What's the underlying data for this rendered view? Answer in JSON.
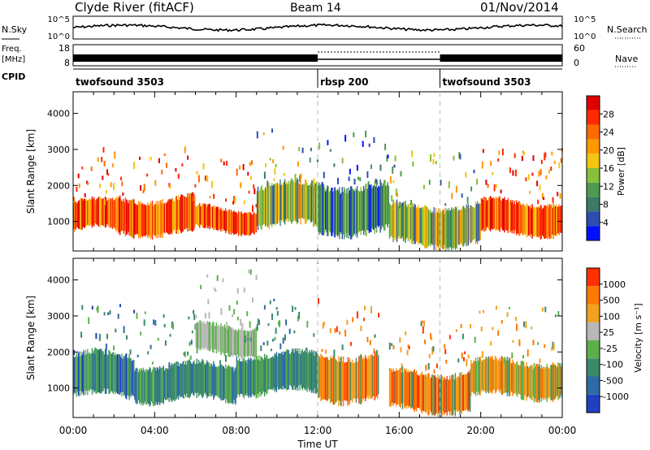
{
  "header": {
    "radar": "Clyde River (fitACF)",
    "beam": "Beam 14",
    "date": "01/Nov/2014"
  },
  "noise_panel": {
    "left_label": "N.Sky",
    "right_label": "N.Search",
    "left_ticks": [
      "10^5",
      "10^0"
    ],
    "right_ticks": [
      "10^5",
      "10^0"
    ]
  },
  "freq_panel": {
    "left_label_1": "Freq.",
    "left_label_2": "[MHz]",
    "left_ticks": [
      "18",
      "8"
    ],
    "right_ticks": [
      "60",
      "0"
    ],
    "right_label": "Nave"
  },
  "cpid": {
    "label": "CPID",
    "segments": [
      {
        "name": "twofsound 3503",
        "start_hour": 0,
        "end_hour": 12
      },
      {
        "name": "rbsp 200",
        "start_hour": 12,
        "end_hour": 18
      },
      {
        "name": "twofsound 3503",
        "start_hour": 18,
        "end_hour": 24
      }
    ]
  },
  "colorbars": {
    "power": {
      "label": "Power [dB]",
      "ticks": [
        "28",
        "24",
        "20",
        "16",
        "12",
        "8",
        "4"
      ],
      "colors": [
        "#0010ff",
        "#2d4db0",
        "#3b7a68",
        "#4e9a4f",
        "#87c03a",
        "#f2c511",
        "#ff9800",
        "#ff6a00",
        "#ff2a00",
        "#e00000"
      ]
    },
    "velocity": {
      "label": "Velocity [m s⁻¹]",
      "ticks": [
        "1000",
        "500",
        "100",
        "25",
        "-25",
        "-100",
        "-500",
        "-1000"
      ],
      "colors": [
        "#2040c0",
        "#2e6aa6",
        "#3a8a6a",
        "#5cb04a",
        "#b8b8b8",
        "#f2a020",
        "#ff7a00",
        "#ff3000"
      ]
    }
  },
  "chart_data": [
    {
      "type": "heatmap",
      "title": "Power",
      "ylabel": "Slant Range [km]",
      "xlabel": "",
      "yticks": [
        "1000",
        "2000",
        "3000",
        "4000"
      ],
      "ylim": [
        180,
        4600
      ],
      "xlim_hours": [
        0,
        24
      ],
      "blobs": [
        {
          "t0": 0.0,
          "t1": 2.0,
          "r0": 700,
          "r1": 1600,
          "level": "high"
        },
        {
          "t0": 2.0,
          "t1": 6.0,
          "r0": 600,
          "r1": 1700,
          "level": "high"
        },
        {
          "t0": 6.0,
          "t1": 9.0,
          "r0": 700,
          "r1": 1400,
          "level": "high"
        },
        {
          "t0": 9.0,
          "t1": 12.0,
          "r0": 800,
          "r1": 2100,
          "level": "mid"
        },
        {
          "t0": 12.0,
          "t1": 15.5,
          "r0": 600,
          "r1": 2100,
          "level": "low"
        },
        {
          "t0": 15.5,
          "t1": 20.0,
          "r0": 300,
          "r1": 1500,
          "level": "mid"
        },
        {
          "t0": 20.0,
          "t1": 24.0,
          "r0": 600,
          "r1": 1600,
          "level": "high"
        }
      ]
    },
    {
      "type": "heatmap",
      "title": "Velocity",
      "ylabel": "Slant Range [km]",
      "xlabel": "Time UT",
      "yticks": [
        "1000",
        "2000",
        "3000",
        "4000"
      ],
      "ylim": [
        180,
        4600
      ],
      "xlim_hours": [
        0,
        24
      ],
      "xticks": [
        "00:00",
        "04:00",
        "08:00",
        "12:00",
        "16:00",
        "20:00",
        "00:00"
      ],
      "blobs": [
        {
          "t0": 0.0,
          "t1": 3.0,
          "r0": 700,
          "r1": 2000,
          "level": "toward"
        },
        {
          "t0": 3.0,
          "t1": 8.0,
          "r0": 600,
          "r1": 1700,
          "level": "toward_small"
        },
        {
          "t0": 6.0,
          "t1": 9.0,
          "r0": 1900,
          "r1": 2800,
          "level": "ground"
        },
        {
          "t0": 8.0,
          "t1": 12.0,
          "r0": 800,
          "r1": 2000,
          "level": "toward_small"
        },
        {
          "t0": 12.0,
          "t1": 15.0,
          "r0": 600,
          "r1": 2000,
          "level": "away"
        },
        {
          "t0": 15.5,
          "t1": 19.5,
          "r0": 300,
          "r1": 1500,
          "level": "away"
        },
        {
          "t0": 19.5,
          "t1": 24.0,
          "r0": 700,
          "r1": 1800,
          "level": "away_small"
        }
      ]
    }
  ]
}
